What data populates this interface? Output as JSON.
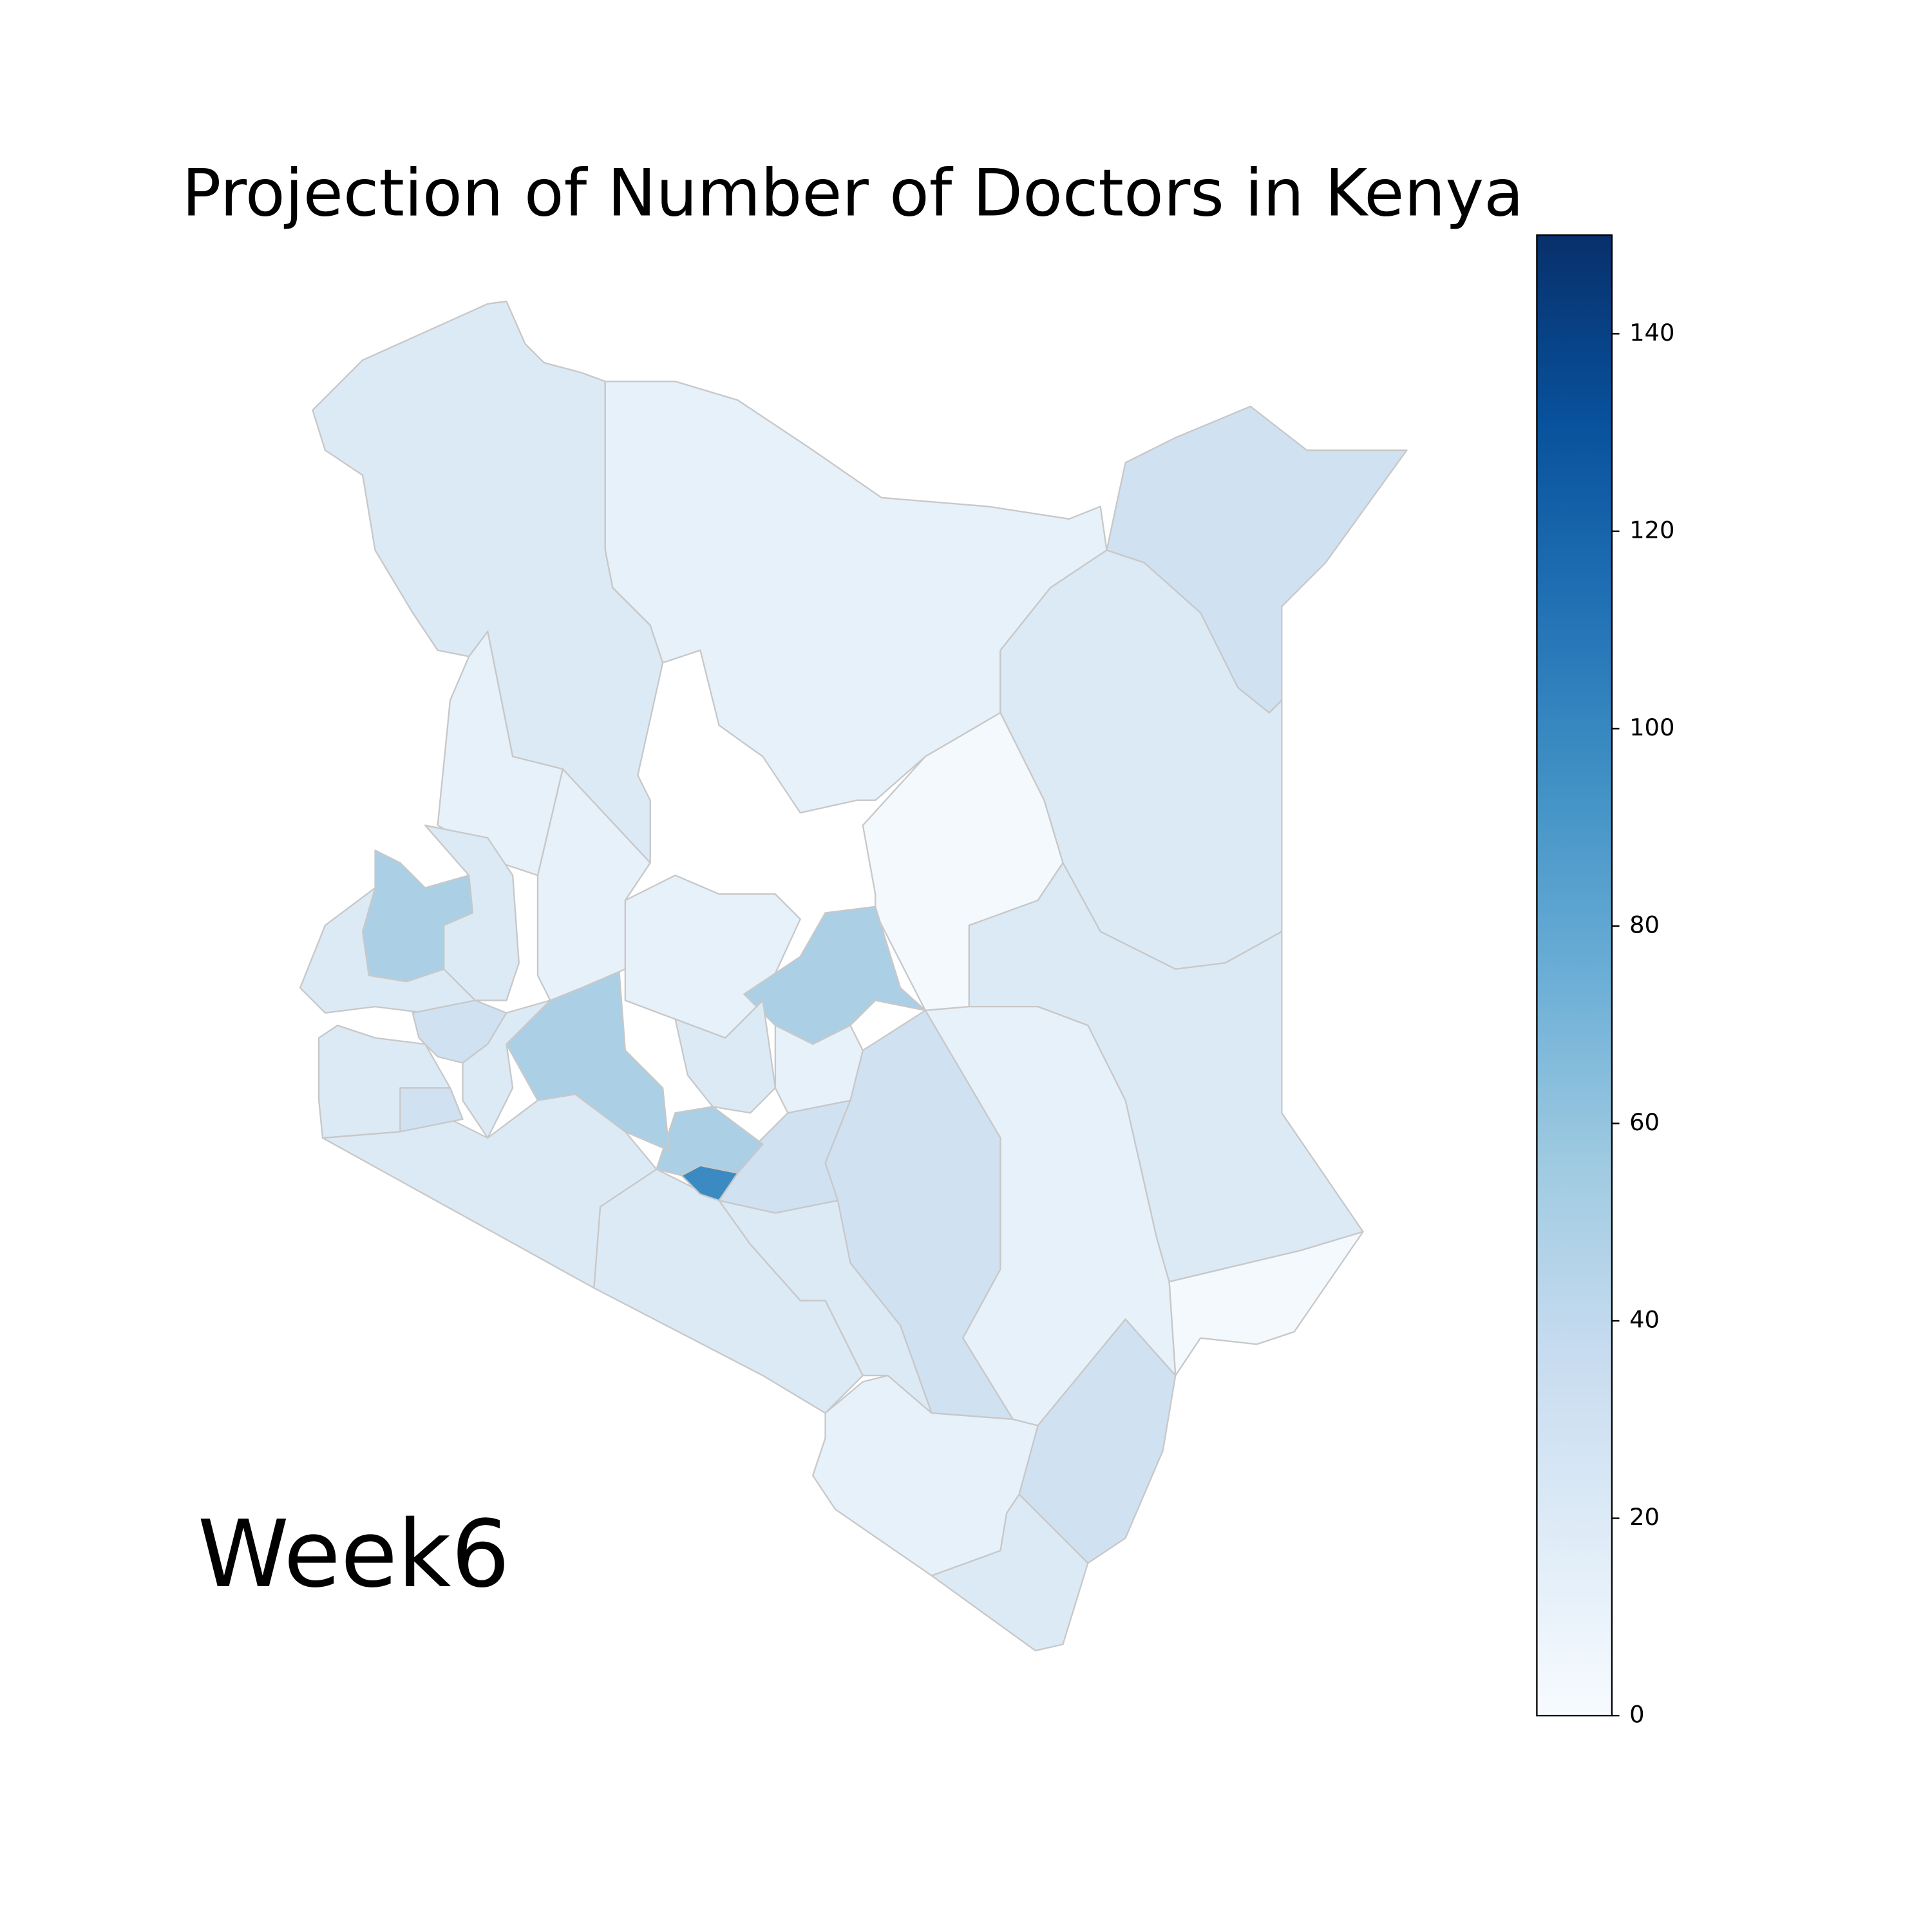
{
  "chart_data": {
    "type": "choropleth",
    "title": "Projection of Number of Doctors in Kenya",
    "annotation": "Week6",
    "colormap": "Blues",
    "clim": [
      0,
      150
    ],
    "cticks": [
      0,
      20,
      40,
      60,
      80,
      100,
      120,
      140
    ],
    "values": [
      20,
      12,
      30,
      20,
      2,
      20,
      2,
      12,
      30,
      30,
      20,
      12,
      20,
      20,
      20,
      30,
      98,
      50,
      50,
      12,
      50,
      12,
      20,
      12,
      12,
      50,
      20,
      20,
      30,
      20,
      30,
      20
    ]
  }
}
